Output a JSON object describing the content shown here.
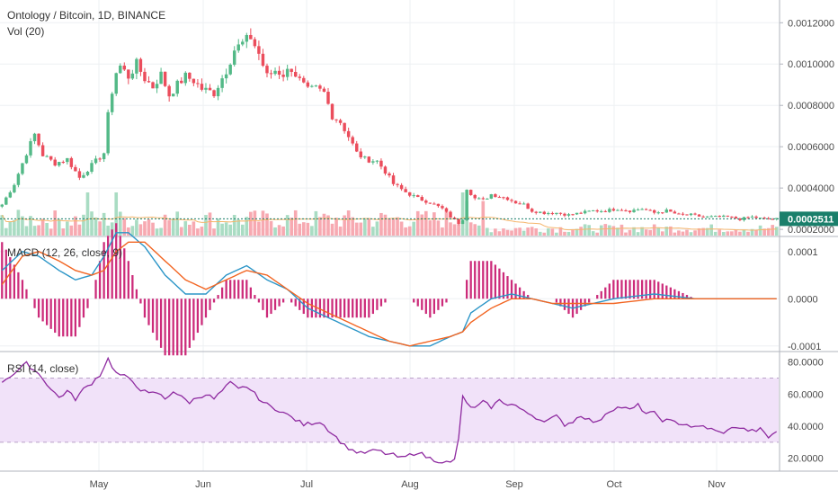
{
  "header": {
    "title": "Ontology / Bitcoin, 1D, BINANCE",
    "volume_label": "Vol (20)"
  },
  "macd": {
    "label": "MACD (12, 26, close, 9)"
  },
  "rsi": {
    "label": "RSI (14, close)"
  },
  "colors": {
    "up": "#53b987",
    "down": "#eb4d5c",
    "up_vol": "#a9dcc3",
    "down_vol": "#f7a9b1",
    "vol_ma": "#f5b56b",
    "macd_line": "#2b95c7",
    "signal_line": "#f26522",
    "histogram": "#cc2b7a",
    "rsi_line": "#8e2aa0",
    "rsi_band": "#f1e2f9",
    "last_price": "#1a7f6b",
    "grid": "#eef0f3",
    "axis_text": "#4a4a4a",
    "border": "#b2b5be"
  },
  "chart_data": [
    {
      "type": "candlestick",
      "panel": "price",
      "title": "Ontology / Bitcoin, 1D, BINANCE",
      "x_ticks": [
        "May",
        "Jun",
        "Jul",
        "Aug",
        "Sep",
        "Oct",
        "Nov"
      ],
      "y_ticks": [
        "0.0012000",
        "0.0010000",
        "0.0008000",
        "0.0006000",
        "0.0004000",
        "0.0002000"
      ],
      "ylim": [
        0.00017,
        0.00131
      ],
      "last_price": "0.0002511",
      "close_path": [
        [
          0,
          0.00032
        ],
        [
          3,
          0.00042
        ],
        [
          6,
          0.00057
        ],
        [
          8,
          0.00066
        ],
        [
          10,
          0.00056
        ],
        [
          13,
          0.00052
        ],
        [
          16,
          0.00054
        ],
        [
          19,
          0.00045
        ],
        [
          22,
          0.00051
        ],
        [
          25,
          0.00057
        ],
        [
          26,
          0.00075
        ],
        [
          27,
          0.00087
        ],
        [
          28,
          0.00096
        ],
        [
          29,
          0.00099
        ],
        [
          31,
          0.00094
        ],
        [
          33,
          0.001
        ],
        [
          35,
          0.00093
        ],
        [
          37,
          0.00089
        ],
        [
          39,
          0.00095
        ],
        [
          41,
          0.00085
        ],
        [
          43,
          0.0009
        ],
        [
          45,
          0.00094
        ],
        [
          47,
          0.00092
        ],
        [
          49,
          0.00088
        ],
        [
          52,
          0.00086
        ],
        [
          55,
          0.00097
        ],
        [
          57,
          0.00107
        ],
        [
          59,
          0.0011
        ],
        [
          61,
          0.00113
        ],
        [
          63,
          0.00105
        ],
        [
          65,
          0.00094
        ],
        [
          67,
          0.00097
        ],
        [
          69,
          0.00095
        ],
        [
          71,
          0.00098
        ],
        [
          73,
          0.00092
        ],
        [
          75,
          0.00087
        ],
        [
          77,
          0.00088
        ],
        [
          79,
          0.00086
        ],
        [
          81,
          0.00075
        ],
        [
          83,
          0.00072
        ],
        [
          85,
          0.00065
        ],
        [
          87,
          0.00057
        ],
        [
          89,
          0.00054
        ],
        [
          92,
          0.00053
        ],
        [
          94,
          0.00048
        ],
        [
          96,
          0.00042
        ],
        [
          99,
          0.00038
        ],
        [
          102,
          0.00035
        ],
        [
          105,
          0.00033
        ],
        [
          108,
          0.0003
        ],
        [
          110,
          0.00026
        ],
        [
          112,
          0.00023
        ],
        [
          113,
          0.00025
        ],
        [
          114,
          0.0004
        ],
        [
          116,
          0.00035
        ],
        [
          118,
          0.00034
        ],
        [
          120,
          0.00037
        ],
        [
          122,
          0.00036
        ],
        [
          124,
          0.00035
        ],
        [
          126,
          0.00033
        ],
        [
          128,
          0.00032
        ],
        [
          130,
          0.00029
        ],
        [
          133,
          0.00028
        ],
        [
          136,
          0.00028
        ],
        [
          139,
          0.00027
        ],
        [
          142,
          0.00028
        ],
        [
          145,
          0.00029
        ],
        [
          148,
          0.00029
        ],
        [
          151,
          0.0003
        ],
        [
          154,
          0.00029
        ],
        [
          157,
          0.0003
        ],
        [
          160,
          0.00028
        ],
        [
          163,
          0.00029
        ],
        [
          166,
          0.00027
        ],
        [
          169,
          0.00027
        ],
        [
          172,
          0.00026
        ],
        [
          175,
          0.00026
        ],
        [
          178,
          0.00026
        ],
        [
          181,
          0.00025
        ],
        [
          184,
          0.00026
        ],
        [
          187,
          0.00025
        ],
        [
          190,
          0.00025
        ]
      ]
    },
    {
      "type": "bar",
      "panel": "volume",
      "title": "Vol (20)"
    },
    {
      "type": "line",
      "panel": "macd",
      "title": "MACD (12, 26, close, 9)",
      "y_ticks": [
        "0.0001",
        "0.0000",
        "-0.0001"
      ],
      "ylim": [
        -0.00011,
        0.00013
      ],
      "series": [
        {
          "name": "MACD",
          "points": [
            [
              0,
              6e-05
            ],
            [
              5,
              0.0001
            ],
            [
              9,
              9e-05
            ],
            [
              14,
              6e-05
            ],
            [
              18,
              4e-05
            ],
            [
              22,
              5e-05
            ],
            [
              25,
              9e-05
            ],
            [
              28,
              0.00014
            ],
            [
              31,
              0.00014
            ],
            [
              35,
              0.00011
            ],
            [
              40,
              5e-05
            ],
            [
              45,
              1e-05
            ],
            [
              50,
              1e-05
            ],
            [
              55,
              5e-05
            ],
            [
              60,
              7e-05
            ],
            [
              65,
              4e-05
            ],
            [
              70,
              2e-05
            ],
            [
              75,
              -2e-05
            ],
            [
              80,
              -4e-05
            ],
            [
              85,
              -6e-05
            ],
            [
              90,
              -8e-05
            ],
            [
              95,
              -9e-05
            ],
            [
              100,
              -0.0001
            ],
            [
              105,
              -0.0001
            ],
            [
              110,
              -8e-05
            ],
            [
              113,
              -7e-05
            ],
            [
              115,
              -3e-05
            ],
            [
              120,
              0.0
            ],
            [
              125,
              1e-05
            ],
            [
              130,
              0.0
            ],
            [
              135,
              -1e-05
            ],
            [
              140,
              -2e-05
            ],
            [
              150,
              0.0
            ],
            [
              160,
              1e-05
            ],
            [
              170,
              0.0
            ],
            [
              180,
              0.0
            ],
            [
              190,
              0.0
            ]
          ]
        },
        {
          "name": "Signal",
          "points": [
            [
              0,
              3e-05
            ],
            [
              5,
              9e-05
            ],
            [
              9,
              0.0001
            ],
            [
              14,
              8e-05
            ],
            [
              18,
              6e-05
            ],
            [
              22,
              5e-05
            ],
            [
              25,
              6e-05
            ],
            [
              28,
              0.0001
            ],
            [
              31,
              0.00012
            ],
            [
              35,
              0.00012
            ],
            [
              40,
              8e-05
            ],
            [
              45,
              4e-05
            ],
            [
              50,
              2e-05
            ],
            [
              55,
              4e-05
            ],
            [
              60,
              6e-05
            ],
            [
              65,
              5e-05
            ],
            [
              70,
              2e-05
            ],
            [
              75,
              -1e-05
            ],
            [
              80,
              -3e-05
            ],
            [
              85,
              -5e-05
            ],
            [
              90,
              -7e-05
            ],
            [
              95,
              -9e-05
            ],
            [
              100,
              -0.0001
            ],
            [
              105,
              -9e-05
            ],
            [
              110,
              -8e-05
            ],
            [
              113,
              -7e-05
            ],
            [
              115,
              -5e-05
            ],
            [
              120,
              -2e-05
            ],
            [
              125,
              0.0
            ],
            [
              130,
              0.0
            ],
            [
              135,
              -1e-05
            ],
            [
              140,
              -1e-05
            ],
            [
              150,
              -1e-05
            ],
            [
              160,
              0.0
            ],
            [
              170,
              0.0
            ],
            [
              180,
              0.0
            ],
            [
              190,
              0.0
            ]
          ]
        }
      ]
    },
    {
      "type": "line",
      "panel": "rsi",
      "title": "RSI (14, close)",
      "y_ticks": [
        "80.0000",
        "60.0000",
        "40.0000",
        "20.0000"
      ],
      "ylim": [
        12,
        86
      ],
      "band": [
        30,
        70
      ],
      "series": [
        {
          "name": "RSI",
          "points": [
            [
              0,
              68
            ],
            [
              3,
              73
            ],
            [
              6,
              79
            ],
            [
              8,
              75
            ],
            [
              10,
              70
            ],
            [
              12,
              63
            ],
            [
              14,
              58
            ],
            [
              16,
              62
            ],
            [
              18,
              57
            ],
            [
              20,
              63
            ],
            [
              22,
              67
            ],
            [
              24,
              72
            ],
            [
              26,
              82
            ],
            [
              28,
              73
            ],
            [
              30,
              71
            ],
            [
              32,
              68
            ],
            [
              34,
              63
            ],
            [
              36,
              60
            ],
            [
              38,
              61
            ],
            [
              40,
              57
            ],
            [
              42,
              62
            ],
            [
              44,
              58
            ],
            [
              46,
              55
            ],
            [
              48,
              58
            ],
            [
              50,
              60
            ],
            [
              52,
              57
            ],
            [
              54,
              62
            ],
            [
              56,
              67
            ],
            [
              58,
              63
            ],
            [
              60,
              65
            ],
            [
              62,
              60
            ],
            [
              64,
              55
            ],
            [
              66,
              52
            ],
            [
              68,
              50
            ],
            [
              70,
              47
            ],
            [
              72,
              44
            ],
            [
              74,
              41
            ],
            [
              76,
              42
            ],
            [
              78,
              43
            ],
            [
              80,
              38
            ],
            [
              82,
              33
            ],
            [
              84,
              28
            ],
            [
              86,
              25
            ],
            [
              88,
              23
            ],
            [
              90,
              24
            ],
            [
              92,
              25
            ],
            [
              94,
              23
            ],
            [
              96,
              22
            ],
            [
              98,
              20
            ],
            [
              100,
              22
            ],
            [
              102,
              24
            ],
            [
              104,
              21
            ],
            [
              106,
              19
            ],
            [
              108,
              18
            ],
            [
              110,
              17
            ],
            [
              111,
              19
            ],
            [
              112,
              33
            ],
            [
              113,
              58
            ],
            [
              114,
              54
            ],
            [
              116,
              51
            ],
            [
              118,
              55
            ],
            [
              120,
              52
            ],
            [
              122,
              56
            ],
            [
              124,
              54
            ],
            [
              126,
              53
            ],
            [
              128,
              49
            ],
            [
              130,
              47
            ],
            [
              132,
              44
            ],
            [
              134,
              44
            ],
            [
              136,
              46
            ],
            [
              138,
              41
            ],
            [
              140,
              43
            ],
            [
              142,
              47
            ],
            [
              144,
              44
            ],
            [
              146,
              42
            ],
            [
              148,
              48
            ],
            [
              150,
              51
            ],
            [
              152,
              52
            ],
            [
              154,
              50
            ],
            [
              156,
              53
            ],
            [
              158,
              48
            ],
            [
              160,
              48
            ],
            [
              162,
              44
            ],
            [
              164,
              43
            ],
            [
              166,
              42
            ],
            [
              168,
              41
            ],
            [
              170,
              39
            ],
            [
              172,
              40
            ],
            [
              174,
              38
            ],
            [
              176,
              36
            ],
            [
              178,
              37
            ],
            [
              180,
              40
            ],
            [
              182,
              38
            ],
            [
              184,
              37
            ],
            [
              186,
              38
            ],
            [
              188,
              33
            ],
            [
              190,
              37
            ]
          ]
        }
      ]
    }
  ]
}
